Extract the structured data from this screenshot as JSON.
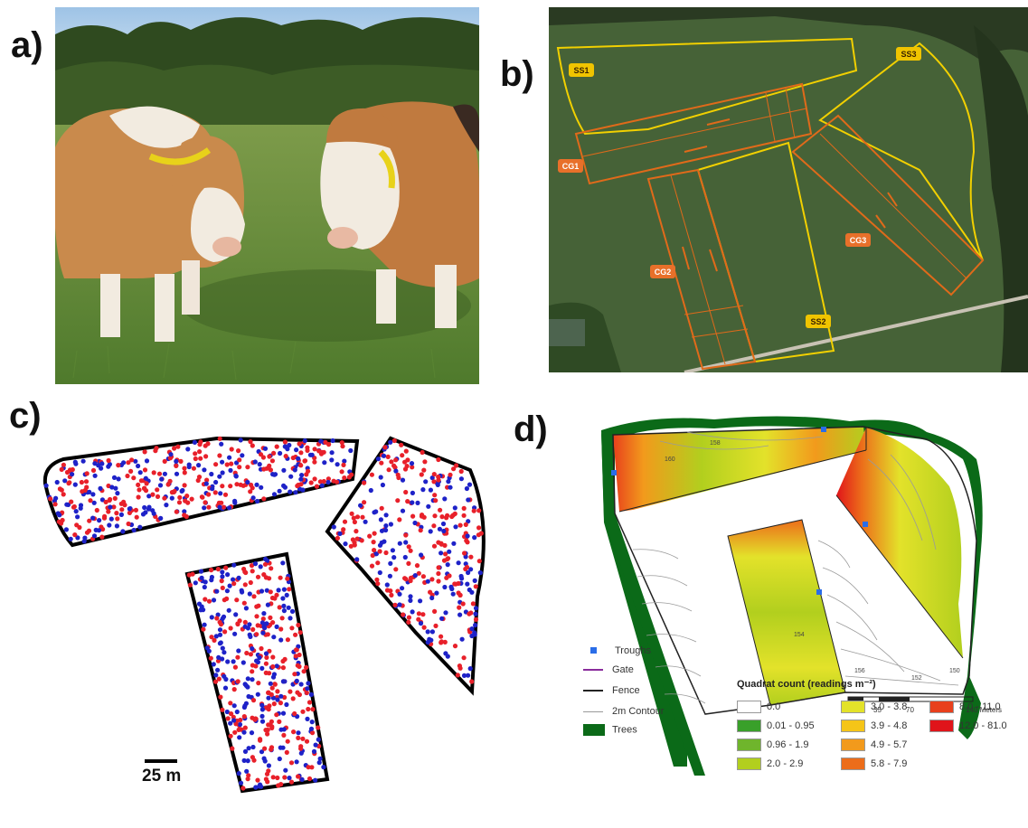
{
  "panels": {
    "a": "a)",
    "b": "b)",
    "c": "c)",
    "d": "d)"
  },
  "map_b": {
    "labels": [
      "SS1",
      "SS2",
      "SS3",
      "CG1",
      "CG2",
      "CG3"
    ],
    "colors": {
      "ss": "#f2d000",
      "cg": "#e06a1a",
      "badge_ss": "#f0c400",
      "badge_cg": "#e8702a"
    }
  },
  "panel_c": {
    "scale_label": "25 m",
    "colors": {
      "red": "#e8202a",
      "blue": "#1e22c8"
    }
  },
  "panel_d": {
    "legend": {
      "troughs": "Troughs",
      "gate": "Gate",
      "fence": "Fence",
      "contour": "2m Contour",
      "trees": "Trees"
    },
    "scalebar": {
      "ticks": [
        "0",
        "35",
        "70",
        "140 Meters"
      ]
    },
    "contour_labels": [
      "156",
      "152",
      "150",
      "154",
      "158",
      "160"
    ],
    "quadrat": {
      "title": "Quadrat count (readings m⁻²)",
      "classes": [
        {
          "label": "0.0",
          "color": "#ffffff"
        },
        {
          "label": "0.01 - 0.95",
          "color": "#39a02a"
        },
        {
          "label": "0.96 - 1.9",
          "color": "#6fb52c"
        },
        {
          "label": "2.0 - 2.9",
          "color": "#b2cf1e"
        },
        {
          "label": "3.0 - 3.8",
          "color": "#e3e22a"
        },
        {
          "label": "3.9 - 4.8",
          "color": "#f5c518"
        },
        {
          "label": "4.9 - 5.7",
          "color": "#f29a1c"
        },
        {
          "label": "5.8 - 7.9",
          "color": "#ec6d1a"
        },
        {
          "label": "8.0 - 11.0",
          "color": "#e8401c"
        },
        {
          "label": "12.0 - 81.0",
          "color": "#e0141a"
        }
      ]
    }
  }
}
